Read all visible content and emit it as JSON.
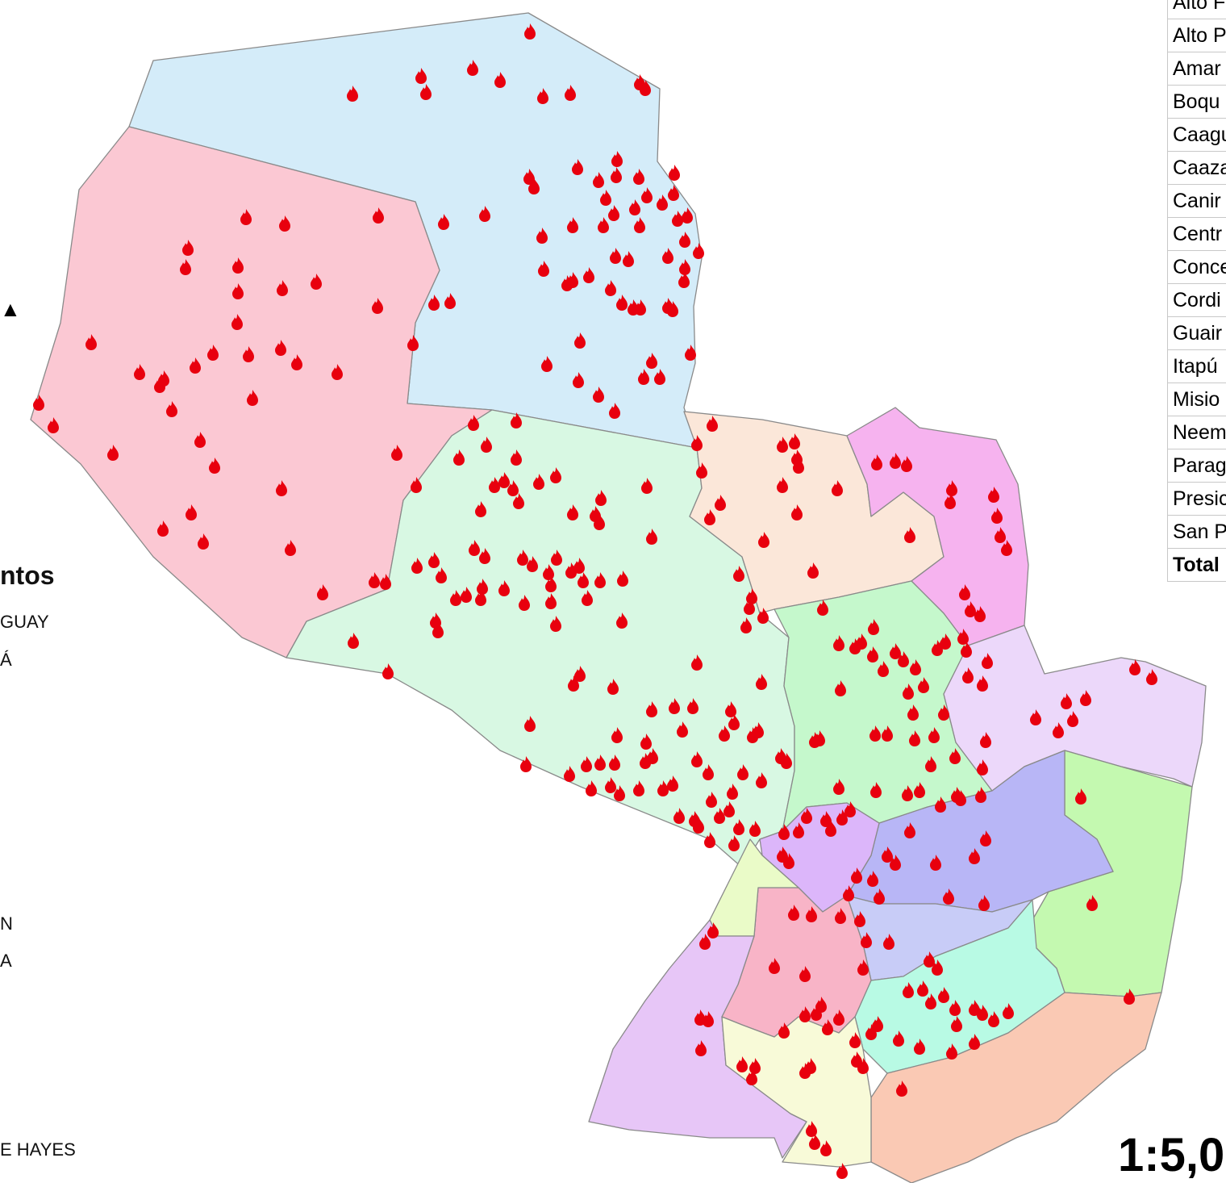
{
  "legend": {
    "title": "ntos",
    "north_arrow": "▲",
    "items": [
      "GUAY",
      "Á",
      "N",
      "A",
      "E HAYES"
    ]
  },
  "table": {
    "rows": [
      "Alto F",
      "Alto P",
      "Amar",
      "Boqu",
      "Caagu",
      "Caaza",
      "Canir",
      "Centr",
      "Conce",
      "Cordi",
      "Guair",
      "Itapú",
      "Misio",
      "Neem",
      "Parag",
      "Presic",
      "San P"
    ],
    "total": "Total"
  },
  "scale": "1:5,0",
  "colors": {
    "fire_marker": "#e8000e",
    "region_boundary": "#8a8a8a"
  },
  "regions": [
    {
      "name": "region-north-blue",
      "fill": "#d4ecf9"
    },
    {
      "name": "region-west-pink",
      "fill": "#fbc8d3"
    },
    {
      "name": "region-central-mint",
      "fill": "#d8f8e3"
    },
    {
      "name": "region-peach",
      "fill": "#fbe7d9"
    },
    {
      "name": "region-magenta",
      "fill": "#f6b3ef"
    },
    {
      "name": "region-green",
      "fill": "#c5f8cc"
    },
    {
      "name": "region-lavender",
      "fill": "#ecd8fa"
    },
    {
      "name": "region-lightgreen",
      "fill": "#c4f9b0"
    },
    {
      "name": "region-blue-violet",
      "fill": "#b8b6f6"
    },
    {
      "name": "region-violet",
      "fill": "#dcb6fa"
    },
    {
      "name": "region-periwinkle",
      "fill": "#c8ccf7"
    },
    {
      "name": "region-aqua",
      "fill": "#b8fae4"
    },
    {
      "name": "region-salmon",
      "fill": "#fac9b4"
    },
    {
      "name": "region-pink",
      "fill": "#f8b4c7"
    },
    {
      "name": "region-purple",
      "fill": "#e7c6f7"
    },
    {
      "name": "region-cream",
      "fill": "#f8fad8"
    },
    {
      "name": "region-yellowgreen",
      "fill": "#eafbc8"
    }
  ]
}
